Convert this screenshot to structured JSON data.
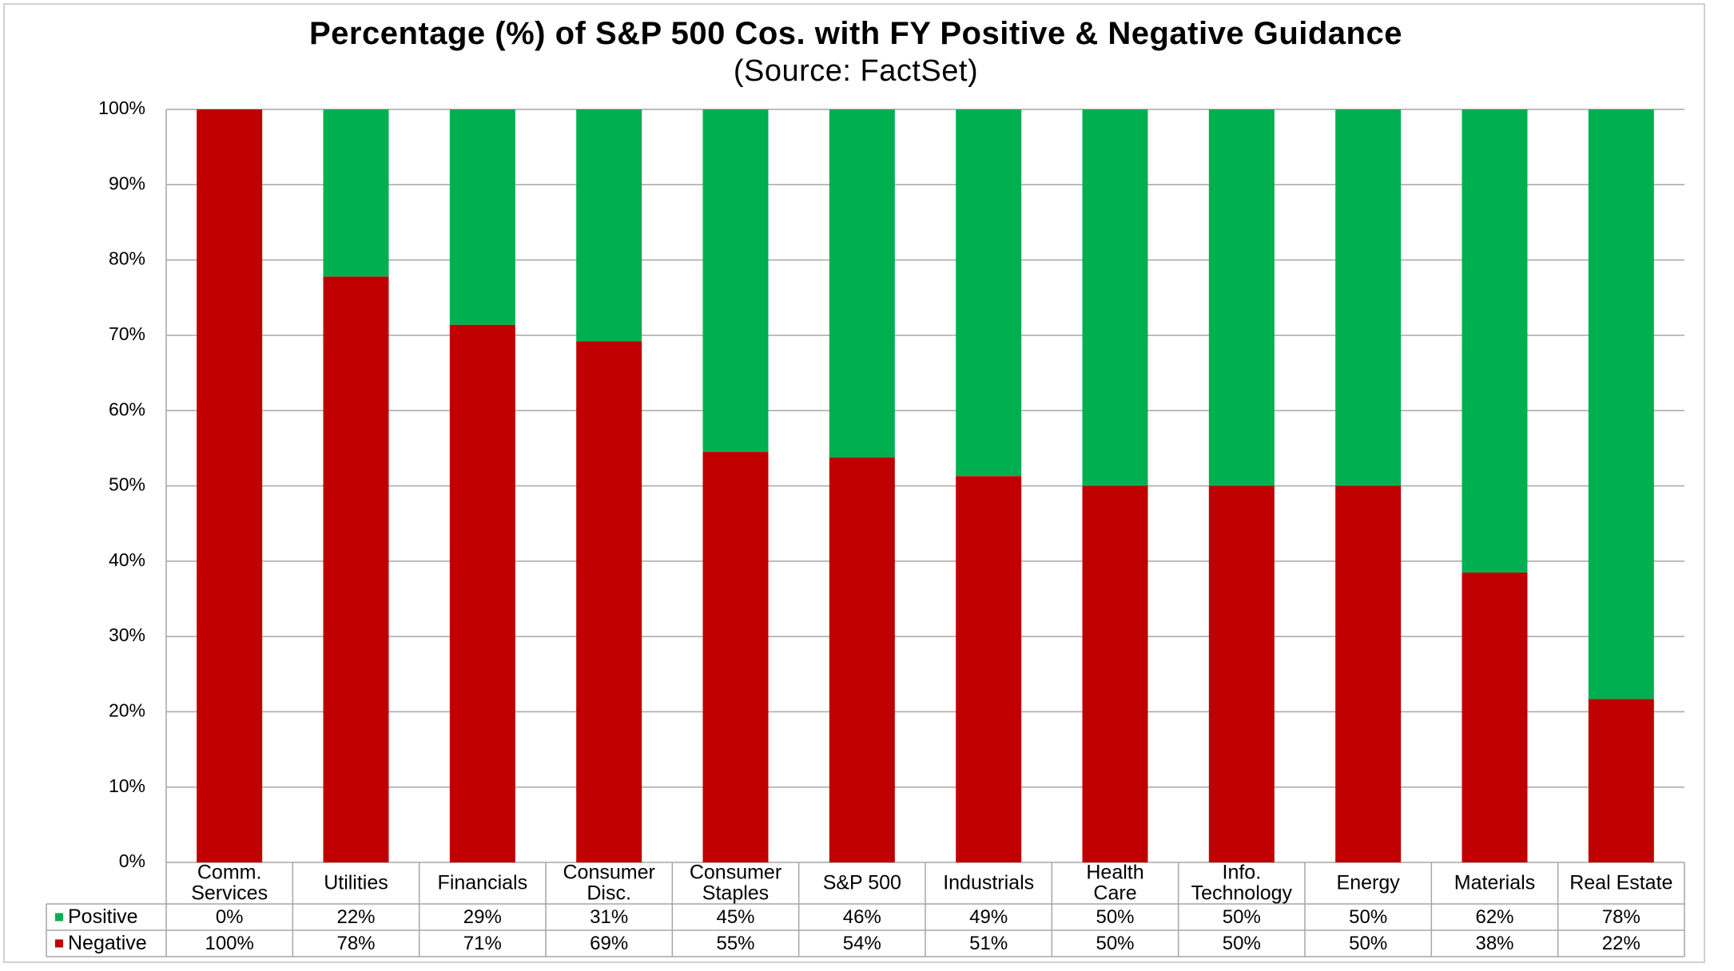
{
  "chart_data": {
    "type": "bar",
    "stacked": true,
    "title": "Percentage (%) of S&P 500 Cos. with FY Positive & Negative Guidance",
    "subtitle": "(Source: FactSet)",
    "categories": [
      [
        "Comm.",
        "Services"
      ],
      [
        "Utilities"
      ],
      [
        "Financials"
      ],
      [
        "Consumer",
        "Disc."
      ],
      [
        "Consumer",
        "Staples"
      ],
      [
        "S&P 500"
      ],
      [
        "Industrials"
      ],
      [
        "Health",
        "Care"
      ],
      [
        "Info.",
        "Technology"
      ],
      [
        "Energy"
      ],
      [
        "Materials"
      ],
      [
        "Real Estate"
      ]
    ],
    "series": [
      {
        "name": "Positive",
        "color": "#00b050",
        "values": [
          0,
          22.2,
          28.6,
          30.8,
          45.5,
          46.2,
          48.7,
          50,
          50,
          50,
          61.5,
          78.3
        ],
        "labels": [
          "0%",
          "22%",
          "29%",
          "31%",
          "45%",
          "46%",
          "49%",
          "50%",
          "50%",
          "50%",
          "62%",
          "78%"
        ]
      },
      {
        "name": "Negative",
        "color": "#c00000",
        "values": [
          100,
          77.8,
          71.4,
          69.2,
          54.5,
          53.8,
          51.3,
          50,
          50,
          50,
          38.5,
          21.7
        ],
        "labels": [
          "100%",
          "78%",
          "71%",
          "69%",
          "55%",
          "54%",
          "51%",
          "50%",
          "50%",
          "50%",
          "38%",
          "22%"
        ]
      }
    ],
    "ylim": [
      0,
      100
    ],
    "yticks": [
      "0%",
      "10%",
      "20%",
      "30%",
      "40%",
      "50%",
      "60%",
      "70%",
      "80%",
      "90%",
      "100%"
    ],
    "grid": true,
    "legend": "data-table"
  }
}
